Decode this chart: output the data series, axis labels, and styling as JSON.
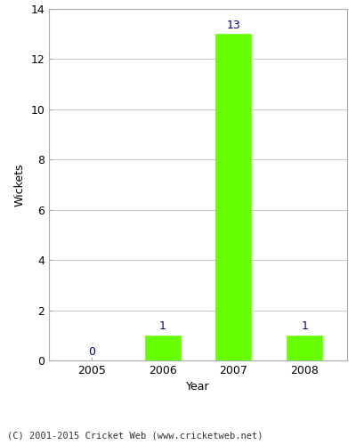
{
  "years": [
    "2005",
    "2006",
    "2007",
    "2008"
  ],
  "values": [
    0,
    1,
    13,
    1
  ],
  "bar_color": "#66ff00",
  "bar_edgecolor": "#66ff00",
  "label_color": "#000080",
  "xlabel": "Year",
  "ylabel": "Wickets",
  "ylim": [
    0,
    14
  ],
  "yticks": [
    0,
    2,
    4,
    6,
    8,
    10,
    12,
    14
  ],
  "grid_color": "#cccccc",
  "bg_color": "#ffffff",
  "figure_color": "#ffffff",
  "footer": "(C) 2001-2015 Cricket Web (www.cricketweb.net)",
  "bar_width": 0.5
}
